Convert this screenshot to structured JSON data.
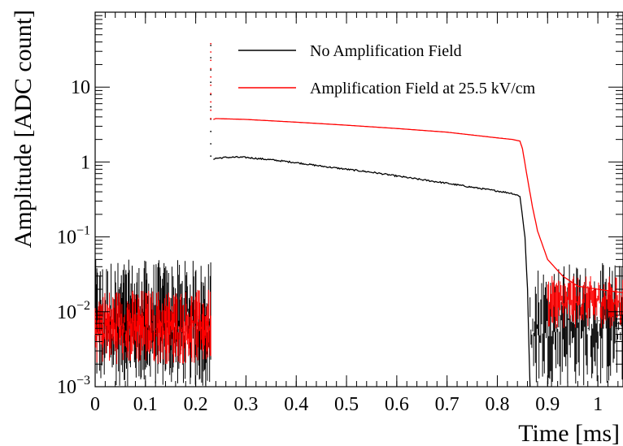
{
  "chart_data": {
    "type": "line",
    "title": "",
    "xlabel": "Time [ms]",
    "ylabel": "Amplitude [ADC count]",
    "xlim": [
      0,
      1.05
    ],
    "ylim": [
      0.001,
      100
    ],
    "yscale": "log",
    "grid": false,
    "legend_position": "top-center",
    "x_ticks": [
      {
        "v": 0,
        "label": "0"
      },
      {
        "v": 0.1,
        "label": "0.1"
      },
      {
        "v": 0.2,
        "label": "0.2"
      },
      {
        "v": 0.3,
        "label": "0.3"
      },
      {
        "v": 0.4,
        "label": "0.4"
      },
      {
        "v": 0.5,
        "label": "0.5"
      },
      {
        "v": 0.6,
        "label": "0.6"
      },
      {
        "v": 0.7,
        "label": "0.7"
      },
      {
        "v": 0.8,
        "label": "0.8"
      },
      {
        "v": 0.9,
        "label": "0.9"
      },
      {
        "v": 1,
        "label": "1"
      }
    ],
    "y_ticks": [
      {
        "v": 0.001,
        "base": "10",
        "exp": "−3"
      },
      {
        "v": 0.01,
        "base": "10",
        "exp": "−2"
      },
      {
        "v": 0.1,
        "base": "10",
        "exp": "−1"
      },
      {
        "v": 1,
        "base": "1",
        "exp": ""
      },
      {
        "v": 10,
        "base": "10",
        "exp": ""
      }
    ],
    "series": [
      {
        "name": "No Amplification Field",
        "color": "#000000",
        "noise_region": {
          "x": [
            0.0,
            0.23
          ],
          "range": [
            0.001,
            0.05
          ]
        },
        "spike": {
          "x": 0.23,
          "y": [
            1.2,
            36
          ]
        },
        "x": [
          0.235,
          0.24,
          0.26,
          0.28,
          0.3,
          0.35,
          0.4,
          0.45,
          0.5,
          0.55,
          0.6,
          0.65,
          0.7,
          0.75,
          0.8,
          0.83,
          0.845,
          0.855,
          0.86,
          0.865
        ],
        "y": [
          1.1,
          1.12,
          1.15,
          1.16,
          1.15,
          1.07,
          0.98,
          0.88,
          0.8,
          0.73,
          0.65,
          0.58,
          0.52,
          0.46,
          0.41,
          0.38,
          0.35,
          0.1,
          0.02,
          0.001
        ],
        "tail_noise_region": {
          "x": [
            0.865,
            1.05
          ],
          "range": [
            0.001,
            0.045
          ]
        }
      },
      {
        "name": "Amplification Field at 25.5 kV/cm",
        "color": "#ff0000",
        "noise_region": {
          "x": [
            0.0,
            0.23
          ],
          "range": [
            0.002,
            0.02
          ]
        },
        "spike": {
          "x": 0.23,
          "y": [
            3.8,
            38
          ]
        },
        "x": [
          0.235,
          0.24,
          0.3,
          0.4,
          0.5,
          0.6,
          0.7,
          0.8,
          0.83,
          0.845,
          0.85,
          0.86,
          0.87,
          0.88,
          0.9,
          0.93,
          0.96,
          1.0,
          1.05
        ],
        "y": [
          3.7,
          3.8,
          3.7,
          3.4,
          3.1,
          2.8,
          2.5,
          2.1,
          2.0,
          1.9,
          1.5,
          0.6,
          0.25,
          0.12,
          0.05,
          0.03,
          0.022,
          0.02,
          0.018
        ],
        "tail_noise_region": {
          "x": [
            0.9,
            1.05
          ],
          "range": [
            0.006,
            0.03
          ]
        }
      }
    ]
  }
}
